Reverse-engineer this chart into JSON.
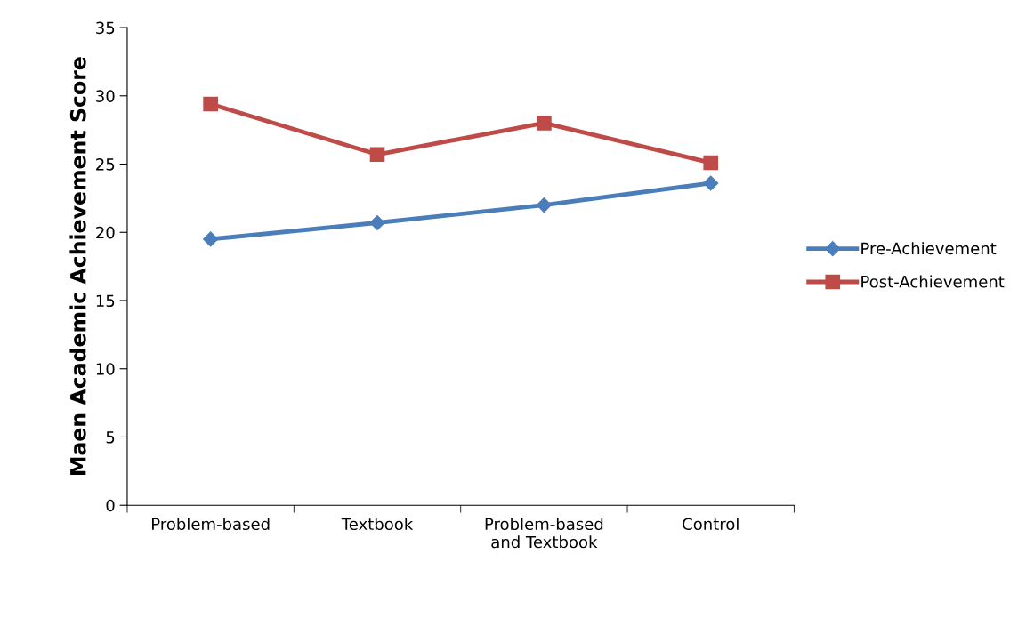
{
  "chart_data": {
    "type": "line",
    "ylabel": "Maen Academic Achievement Score",
    "categories": [
      "Problem-based",
      "Textbook",
      "Problem-based\nand Textbook",
      "Control"
    ],
    "series": [
      {
        "name": "Pre-Achievement",
        "color": "#4a7ebb",
        "marker": "diamond",
        "values": [
          19.5,
          20.7,
          22.0,
          23.6
        ]
      },
      {
        "name": "Post-Achievement",
        "color": "#be4b48",
        "marker": "square",
        "values": [
          29.4,
          25.7,
          28.0,
          25.1
        ]
      }
    ],
    "ylim": [
      0,
      35
    ],
    "yticks": [
      0,
      5,
      10,
      15,
      20,
      25,
      30,
      35
    ],
    "grid": false,
    "legend": "right"
  }
}
